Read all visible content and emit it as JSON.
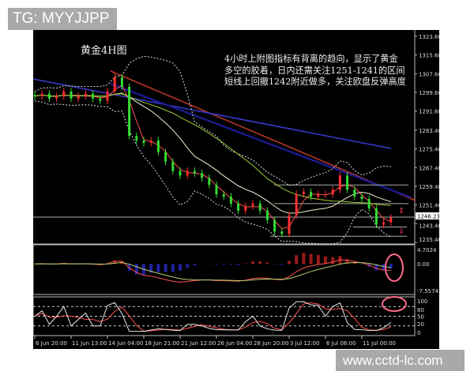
{
  "watermarks": {
    "top_left": "TG: MYYJJPP",
    "bottom_right": "www.cctd-lc.com"
  },
  "chart_data": {
    "type": "candlestick",
    "title": "黄金4H图",
    "annotation": [
      "4小时上附图指标有背离的趋向，显示了黄金",
      "多空的胶着，日内还需关注1251-1241的区间",
      "短线上回撤1242附近做多，关注欧盘反弹高度"
    ],
    "closes": [
      1298,
      1299,
      1297,
      1298,
      1300,
      1297,
      1298,
      1299,
      1297,
      1296,
      1300,
      1306,
      1302,
      1281,
      1279,
      1278,
      1279,
      1274,
      1270,
      1266,
      1264,
      1266,
      1265,
      1263,
      1260,
      1256,
      1255,
      1252,
      1249,
      1251,
      1252,
      1249,
      1245,
      1240,
      1239,
      1247,
      1256,
      1257,
      1255,
      1256,
      1256,
      1258,
      1264,
      1258,
      1255,
      1254,
      1250,
      1243,
      1244,
      1246
    ],
    "x_tick_labels": [
      "6 Jun 20:00",
      "11 Jun 13:00",
      "14 Jun 04:00",
      "18 Jun 21:00",
      "21 Jun 12:00",
      "26 Jun 04:00",
      "28 Jun 20:00",
      "3 Jul 12:00",
      "6 Jul 08:00",
      "11 Jul 00:00"
    ],
    "y_tick_labels": [
      "1323.60",
      "1315.60",
      "1307.60",
      "1299.60",
      "1291.60",
      "1283.40",
      "1275.40",
      "1267.40",
      "1259.40",
      "1251.40",
      "1243.40",
      "1235.40"
    ],
    "ylim": [
      1235.4,
      1323.6
    ],
    "current_price": "1246.23",
    "horizontal_levels": [
      1260,
      1252,
      1246.23,
      1242,
      1238
    ],
    "macd": {
      "labels": [
        "4.7024",
        "0.00",
        "-7.5574"
      ],
      "ylim": [
        -7.5574,
        4.7024
      ]
    },
    "stochastic": {
      "labels": [
        "100",
        "80",
        "50",
        "20",
        "0"
      ],
      "levels": [
        80,
        50,
        20
      ],
      "ylim": [
        0,
        100
      ]
    },
    "colors": {
      "bull": "#ff3030",
      "bear": "#33dd33",
      "ma_fast": "#ff5050",
      "ma_slow": "#f0f0d0",
      "ma_long": "#9acd32",
      "band": "#dddddd",
      "trend_red": "#c0392b",
      "trend_blue": "#3a3ad0",
      "macd_pos": "#c02020",
      "macd_neg": "#2a2acc",
      "highlight": "#ff6a8a"
    }
  }
}
